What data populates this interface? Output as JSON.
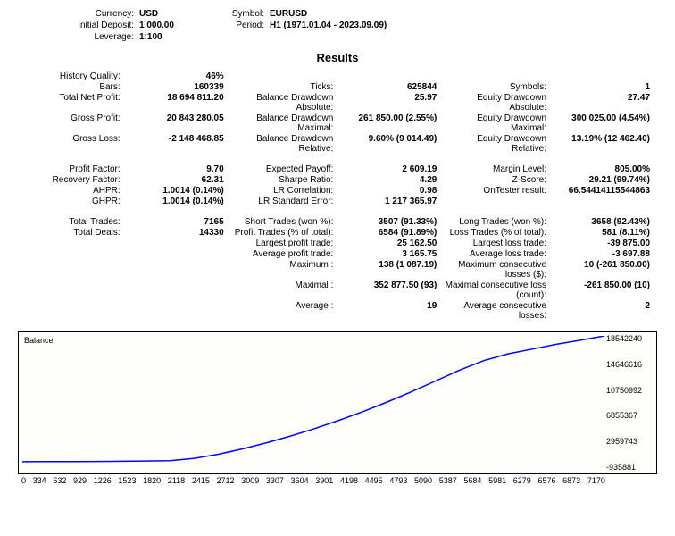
{
  "header": {
    "currency_label": "Currency:",
    "currency_value": "USD",
    "symbol_label": "Symbol:",
    "symbol_value": "EURUSD",
    "initial_deposit_label": "Initial Deposit:",
    "initial_deposit_value": "1 000.00",
    "period_label": "Period:",
    "period_value": "H1 (1971.01.04 - 2023.09.09)",
    "leverage_label": "Leverage:",
    "leverage_value": "1:100"
  },
  "results_title": "Results",
  "block1": {
    "r0": {
      "l1": "History Quality:",
      "v1": "46%"
    },
    "r1": {
      "l1": "Bars:",
      "v1": "160339",
      "l2": "Ticks:",
      "v2": "625844",
      "l3": "Symbols:",
      "v3": "1"
    },
    "r2": {
      "l1": "Total Net Profit:",
      "v1": "18 694 811.20",
      "l2": "Balance Drawdown Absolute:",
      "v2": "25.97",
      "l3": "Equity Drawdown Absolute:",
      "v3": "27.47"
    },
    "r3": {
      "l1": "Gross Profit:",
      "v1": "20 843 280.05",
      "l2": "Balance Drawdown Maximal:",
      "v2": "261 850.00 (2.55%)",
      "l3": "Equity Drawdown Maximal:",
      "v3": "300 025.00 (4.54%)"
    },
    "r4": {
      "l1": "Gross Loss:",
      "v1": "-2 148 468.85",
      "l2": "Balance Drawdown Relative:",
      "v2": "9.60% (9 014.49)",
      "l3": "Equity Drawdown Relative:",
      "v3": "13.19% (12 462.40)"
    }
  },
  "block2": {
    "r1": {
      "l1": "Profit Factor:",
      "v1": "9.70",
      "l2": "Expected Payoff:",
      "v2": "2 609.19",
      "l3": "Margin Level:",
      "v3": "805.00%"
    },
    "r2": {
      "l1": "Recovery Factor:",
      "v1": "62.31",
      "l2": "Sharpe Ratio:",
      "v2": "4.29",
      "l3": "Z-Score:",
      "v3": "-29.21 (99.74%)"
    },
    "r3": {
      "l1": "AHPR:",
      "v1": "1.0014 (0.14%)",
      "l2": "LR Correlation:",
      "v2": "0.98",
      "l3": "OnTester result:",
      "v3": "66.54414115544863"
    },
    "r4": {
      "l1": "GHPR:",
      "v1": "1.0014 (0.14%)",
      "l2": "LR Standard Error:",
      "v2": "1 217 365.97"
    }
  },
  "block3": {
    "r1": {
      "l1": "Total Trades:",
      "v1": "7165",
      "l2": "Short Trades (won %):",
      "v2": "3507 (91.33%)",
      "l3": "Long Trades (won %):",
      "v3": "3658 (92.43%)"
    },
    "r2": {
      "l1": "Total Deals:",
      "v1": "14330",
      "l2": "Profit Trades (% of total):",
      "v2": "6584 (91.89%)",
      "l3": "Loss Trades (% of total):",
      "v3": "581 (8.11%)"
    },
    "r3": {
      "l2": "Largest profit trade:",
      "v2": "25 162.50",
      "l3": "Largest loss trade:",
      "v3": "-39 875.00"
    },
    "r4": {
      "l2": "Average profit trade:",
      "v2": "3 165.75",
      "l3": "Average loss trade:",
      "v3": "-3 697.88"
    },
    "r5": {
      "l2": "Maximum :",
      "v2": "138 (1 087.19)",
      "l3": "Maximum consecutive losses ($):",
      "v3": "10 (-261 850.00)"
    },
    "r6": {
      "l2": "Maximal :",
      "v2": "352 877.50 (93)",
      "l3": "Maximal consecutive loss (count):",
      "v3": "-261 850.00 (10)"
    },
    "r7": {
      "l2": "Average :",
      "v2": "19",
      "l3": "Average consecutive losses:",
      "v3": "2"
    }
  },
  "chart": {
    "title": "Balance",
    "type": "line",
    "line_color": "#0000ff",
    "line_width": 1.5,
    "background_color": "#fefefb",
    "border_color": "#000000",
    "font_size": 9,
    "x_ticks": [
      "0",
      "334",
      "632",
      "929",
      "1226",
      "1523",
      "1820",
      "2118",
      "2415",
      "2712",
      "3009",
      "3307",
      "3604",
      "3901",
      "4198",
      "4495",
      "4793",
      "5090",
      "5387",
      "5684",
      "5981",
      "6279",
      "6576",
      "6873",
      "7170"
    ],
    "y_ticks": [
      "18542240",
      "14646616",
      "10750992",
      "6855367",
      "2959743",
      "-935881"
    ],
    "xlim": [
      0,
      7170
    ],
    "ylim": [
      -935881,
      18542240
    ],
    "points_x": [
      0,
      334,
      632,
      929,
      1226,
      1523,
      1820,
      2118,
      2415,
      2712,
      3009,
      3307,
      3604,
      3901,
      4198,
      4495,
      4793,
      5090,
      5387,
      5684,
      5981,
      6279,
      6576,
      6873,
      7170
    ],
    "points_y": [
      1000,
      10000,
      20000,
      40000,
      70000,
      110000,
      160000,
      500000,
      1100000,
      1900000,
      2800000,
      3800000,
      4900000,
      6100000,
      7400000,
      8800000,
      10300000,
      11900000,
      13500000,
      14900000,
      15900000,
      16600000,
      17300000,
      17900000,
      18542240
    ]
  }
}
